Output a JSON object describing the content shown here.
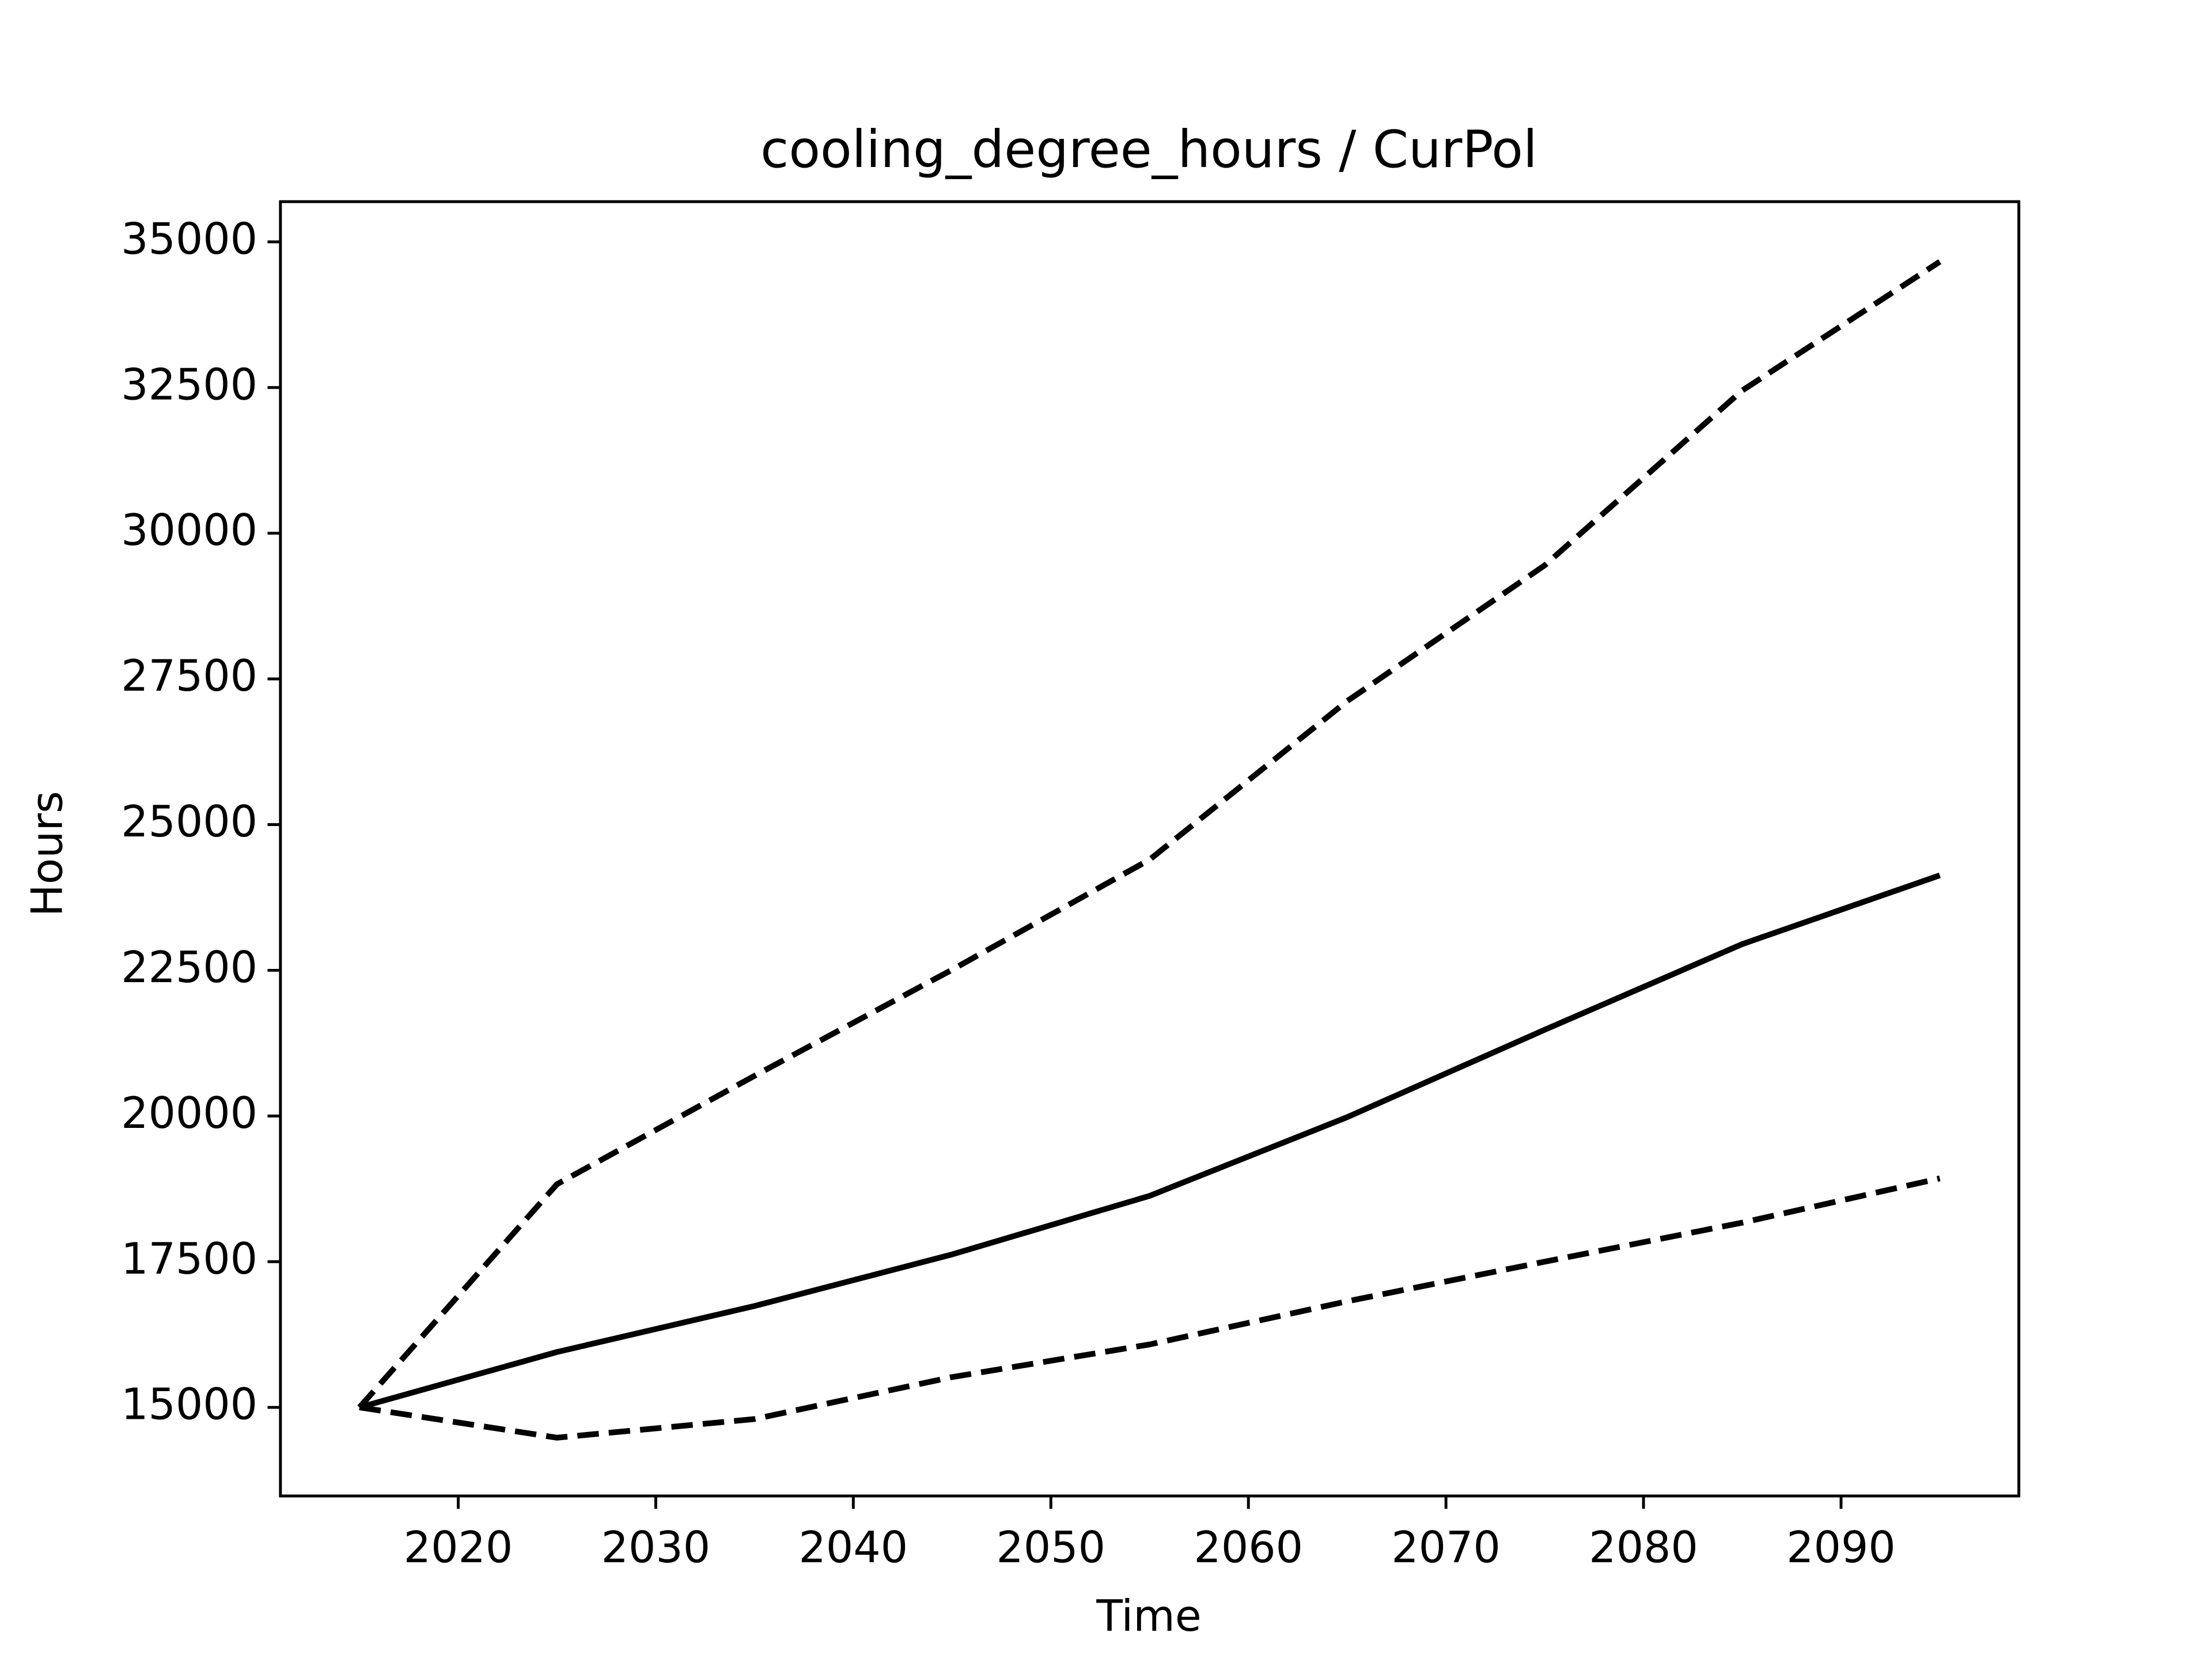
{
  "chart_data": {
    "type": "line",
    "title": "cooling_degree_hours / CurPol",
    "x_label": "Time",
    "y_label": "Hours",
    "x": [
      2015,
      2025,
      2035,
      2045,
      2055,
      2065,
      2075,
      2085,
      2095
    ],
    "series": [
      {
        "color": "#000000",
        "style": "solid",
        "values": [
          15000,
          15950,
          16740,
          17625,
          18630,
          19980,
          21480,
          22950,
          24130
        ]
      },
      {
        "color": "#000000",
        "style": "dashed",
        "values": [
          15000,
          18830,
          20690,
          22510,
          24400,
          27120,
          29450,
          32450,
          34660
        ]
      },
      {
        "color": "#000000",
        "style": "dashed",
        "values": [
          15000,
          14480,
          14800,
          15520,
          16080,
          16820,
          17500,
          18170,
          18930
        ]
      }
    ],
    "xlim": [
      2011,
      2099
    ],
    "ylim": [
      13480,
      35690
    ],
    "xticks": [
      2020,
      2030,
      2040,
      2050,
      2060,
      2070,
      2080,
      2090
    ],
    "yticks": [
      15000,
      17500,
      20000,
      22500,
      25000,
      27500,
      30000,
      32500,
      35000
    ],
    "grid": false
  }
}
